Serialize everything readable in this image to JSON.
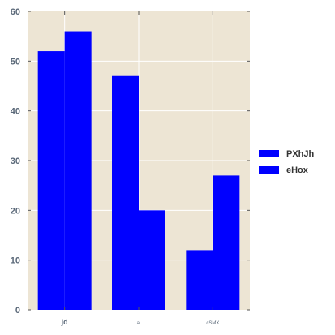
{
  "chart_data": {
    "type": "bar",
    "categories": [
      "jd",
      "al",
      "cSMX"
    ],
    "series": [
      {
        "name": "PXhJh",
        "values": [
          52,
          47,
          12
        ]
      },
      {
        "name": "eHox",
        "values": [
          56,
          20,
          27
        ]
      }
    ],
    "title": "",
    "xlabel": "",
    "ylabel": "",
    "ylim": [
      0,
      60
    ],
    "yticks": [
      0,
      10,
      20,
      30,
      40,
      50,
      60
    ],
    "grid": true,
    "legend_position": "right",
    "colors": {
      "series": [
        "#0000ff",
        "#0000ff"
      ],
      "plot_background": "#ede5d4",
      "grid": "#ffffff",
      "tick_label": "#5a6878"
    }
  }
}
